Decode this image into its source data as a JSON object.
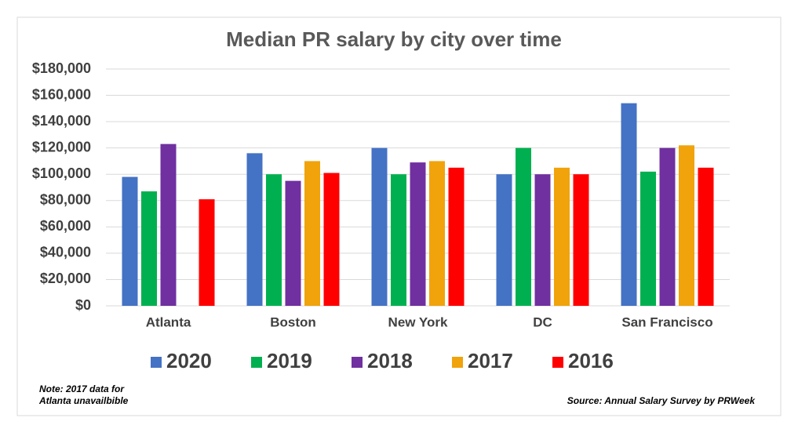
{
  "chart_data": {
    "type": "bar",
    "title": "Median PR salary by city over time",
    "categories": [
      "Atlanta",
      "Boston",
      "New York",
      "DC",
      "San Francisco"
    ],
    "series": [
      {
        "name": "2020",
        "color": "#4472c4",
        "values": [
          98000,
          116000,
          120000,
          100000,
          154000
        ]
      },
      {
        "name": "2019",
        "color": "#00b050",
        "values": [
          87000,
          100000,
          100000,
          120000,
          102000
        ]
      },
      {
        "name": "2018",
        "color": "#7030a0",
        "values": [
          123000,
          95000,
          109000,
          100000,
          120000
        ]
      },
      {
        "name": "2017",
        "color": "#f0a30a",
        "values": [
          null,
          110000,
          110000,
          105000,
          122000
        ]
      },
      {
        "name": "2016",
        "color": "#ff0000",
        "values": [
          81000,
          101000,
          105000,
          100000,
          105000
        ]
      }
    ],
    "ylim": [
      0,
      180000
    ],
    "yticks": [
      {
        "value": 0,
        "label": "$0"
      },
      {
        "value": 20000,
        "label": "$20,000"
      },
      {
        "value": 40000,
        "label": "$40,000"
      },
      {
        "value": 60000,
        "label": "$60,000"
      },
      {
        "value": 80000,
        "label": "$80,000"
      },
      {
        "value": 100000,
        "label": "$100,000"
      },
      {
        "value": 120000,
        "label": "$120,000"
      },
      {
        "value": 140000,
        "label": "$140,000"
      },
      {
        "value": 160000,
        "label": "$160,000"
      },
      {
        "value": 180000,
        "label": "$180,000"
      }
    ],
    "grid": true,
    "legend": "bottom",
    "note": [
      "Note: 2017 data for",
      "Atlanta unavailbible"
    ],
    "source": "Source: Annual Salary Survey by PRWeek"
  }
}
